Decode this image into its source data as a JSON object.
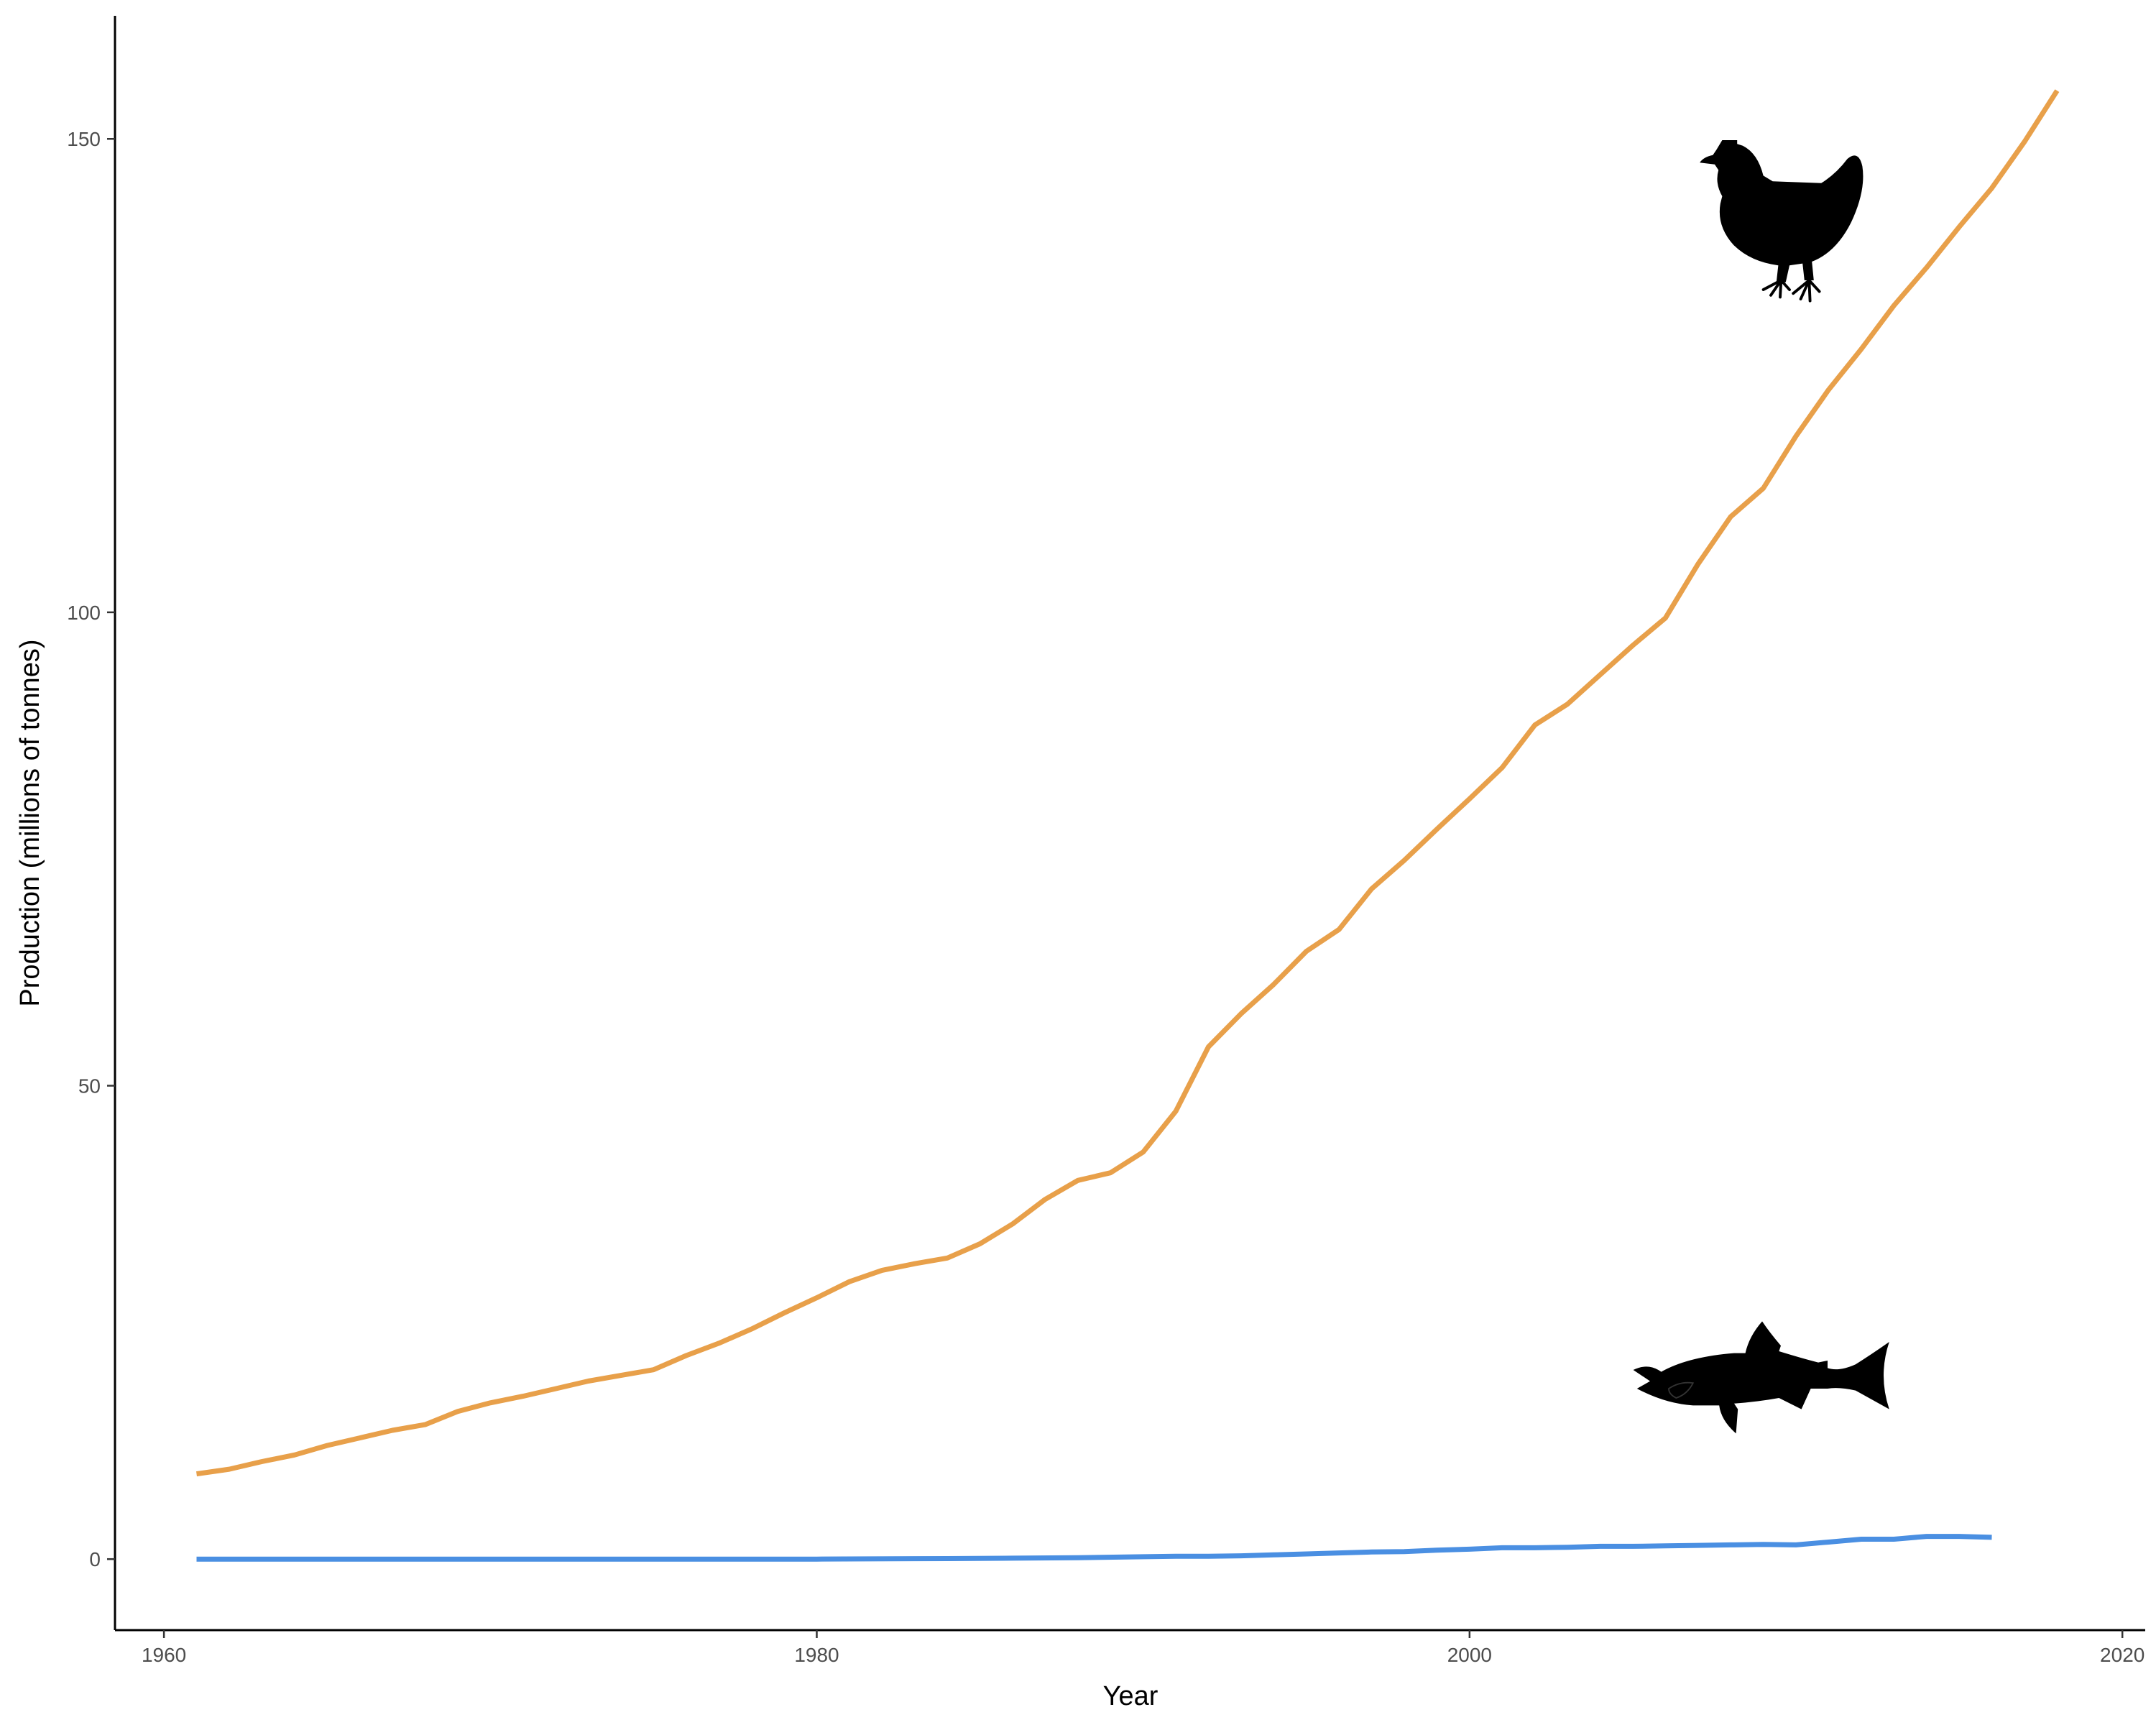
{
  "chart_data": {
    "type": "line",
    "title": "",
    "xlabel": "Year",
    "ylabel": "Production (millions of tonnes)",
    "xlim": [
      1958.5,
      2020.7
    ],
    "ylim": [
      -7.5,
      163
    ],
    "x_ticks": [
      1960,
      1980,
      2000,
      2020
    ],
    "y_ticks": [
      0,
      50,
      100,
      150
    ],
    "x_tick_labels": [
      "1960",
      "1980",
      "2000",
      "2020"
    ],
    "y_tick_labels": [
      "0",
      "50",
      "100",
      "150"
    ],
    "grid": false,
    "legend": "none",
    "series": [
      {
        "color": "#E8A04A",
        "icon": "chicken-icon",
        "points": [
          [
            1961,
            9.0
          ],
          [
            1962,
            9.5
          ],
          [
            1963,
            10.3
          ],
          [
            1964,
            11.0
          ],
          [
            1965,
            12.0
          ],
          [
            1966,
            12.8
          ],
          [
            1967,
            13.6
          ],
          [
            1968,
            14.2
          ],
          [
            1969,
            15.6
          ],
          [
            1970,
            16.5
          ],
          [
            1971,
            17.2
          ],
          [
            1972,
            18.0
          ],
          [
            1973,
            18.8
          ],
          [
            1974,
            19.4
          ],
          [
            1975,
            20.0
          ],
          [
            1976,
            21.5
          ],
          [
            1977,
            22.8
          ],
          [
            1978,
            24.3
          ],
          [
            1979,
            26.0
          ],
          [
            1980,
            27.6
          ],
          [
            1981,
            29.3
          ],
          [
            1982,
            30.5
          ],
          [
            1983,
            31.2
          ],
          [
            1984,
            31.8
          ],
          [
            1985,
            33.3
          ],
          [
            1986,
            35.4
          ],
          [
            1987,
            38.0
          ],
          [
            1988,
            40.0
          ],
          [
            1989,
            40.8
          ],
          [
            1990,
            43.0
          ],
          [
            1991,
            47.3
          ],
          [
            1992,
            54.1
          ],
          [
            1993,
            57.6
          ],
          [
            1994,
            60.7
          ],
          [
            1995,
            64.2
          ],
          [
            1996,
            66.5
          ],
          [
            1997,
            70.8
          ],
          [
            1998,
            73.8
          ],
          [
            1999,
            77.1
          ],
          [
            2000,
            80.3
          ],
          [
            2001,
            83.6
          ],
          [
            2002,
            88.1
          ],
          [
            2003,
            90.3
          ],
          [
            2004,
            93.4
          ],
          [
            2005,
            96.5
          ],
          [
            2006,
            99.4
          ],
          [
            2007,
            105.1
          ],
          [
            2008,
            110.1
          ],
          [
            2009,
            113.1
          ],
          [
            2010,
            118.6
          ],
          [
            2011,
            123.5
          ],
          [
            2012,
            127.8
          ],
          [
            2013,
            132.4
          ],
          [
            2014,
            136.4
          ],
          [
            2015,
            140.7
          ],
          [
            2016,
            144.8
          ],
          [
            2017,
            149.7
          ],
          [
            2018,
            155.1
          ]
        ]
      },
      {
        "color": "#4A8FE2",
        "icon": "fish-icon",
        "points": [
          [
            1961,
            0.0
          ],
          [
            1965,
            0.0
          ],
          [
            1970,
            0.0
          ],
          [
            1975,
            0.0
          ],
          [
            1980,
            0.0
          ],
          [
            1984,
            0.05
          ],
          [
            1986,
            0.1
          ],
          [
            1988,
            0.15
          ],
          [
            1990,
            0.25
          ],
          [
            1991,
            0.3
          ],
          [
            1992,
            0.3
          ],
          [
            1993,
            0.35
          ],
          [
            1994,
            0.45
          ],
          [
            1995,
            0.55
          ],
          [
            1996,
            0.65
          ],
          [
            1997,
            0.75
          ],
          [
            1998,
            0.8
          ],
          [
            1999,
            0.95
          ],
          [
            2000,
            1.05
          ],
          [
            2001,
            1.2
          ],
          [
            2002,
            1.2
          ],
          [
            2003,
            1.25
          ],
          [
            2004,
            1.35
          ],
          [
            2005,
            1.35
          ],
          [
            2006,
            1.4
          ],
          [
            2007,
            1.45
          ],
          [
            2008,
            1.5
          ],
          [
            2009,
            1.55
          ],
          [
            2010,
            1.5
          ],
          [
            2011,
            1.8
          ],
          [
            2012,
            2.1
          ],
          [
            2013,
            2.1
          ],
          [
            2014,
            2.4
          ],
          [
            2015,
            2.4
          ],
          [
            2016,
            2.3
          ]
        ]
      }
    ]
  }
}
